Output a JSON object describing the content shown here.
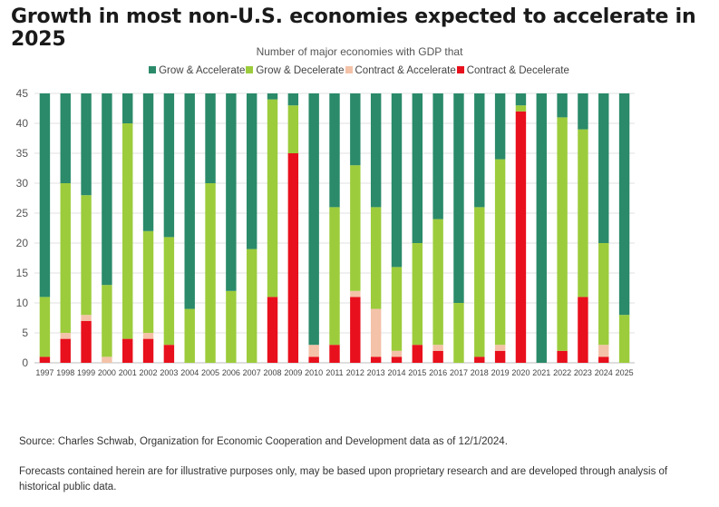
{
  "headline": "Growth in most non-U.S. economies expected to accelerate in 2025",
  "footer": {
    "source": "Source: Charles Schwab, Organization for Economic Cooperation and Development data as of 12/1/2024.",
    "disclaimer": "Forecasts contained herein are for illustrative purposes only, may be based upon proprietary research and are developed through analysis of historical public data."
  },
  "chart_data": {
    "type": "bar",
    "stacked": true,
    "title": "Number of major economies with GDP that",
    "categories": [
      "1997",
      "1998",
      "1999",
      "2000",
      "2001",
      "2002",
      "2003",
      "2004",
      "2005",
      "2006",
      "2007",
      "2008",
      "2009",
      "2010",
      "2011",
      "2012",
      "2013",
      "2014",
      "2015",
      "2016",
      "2017",
      "2018",
      "2019",
      "2020",
      "2021",
      "2022",
      "2023",
      "2024",
      "2025"
    ],
    "series": [
      {
        "name": "Contract & Decelerate",
        "color": "#e8101c",
        "values": [
          1,
          4,
          7,
          0,
          4,
          4,
          3,
          0,
          0,
          0,
          0,
          11,
          35,
          1,
          3,
          11,
          1,
          1,
          3,
          2,
          0,
          1,
          2,
          42,
          0,
          2,
          11,
          1,
          0
        ]
      },
      {
        "name": "Contract & Accelerate",
        "color": "#f4c2a8",
        "values": [
          0,
          1,
          1,
          1,
          0,
          1,
          0,
          0,
          0,
          0,
          0,
          0,
          0,
          2,
          0,
          1,
          8,
          1,
          0,
          1,
          0,
          0,
          1,
          0,
          0,
          0,
          0,
          2,
          0
        ]
      },
      {
        "name": "Grow & Decelerate",
        "color": "#9ccc3c",
        "values": [
          10,
          25,
          20,
          12,
          36,
          17,
          18,
          9,
          30,
          12,
          19,
          33,
          8,
          0,
          23,
          21,
          17,
          14,
          17,
          21,
          10,
          25,
          31,
          1,
          0,
          39,
          28,
          17,
          8
        ]
      },
      {
        "name": "Grow & Accelerate",
        "color": "#2a8a6a",
        "values": [
          34,
          15,
          17,
          32,
          5,
          23,
          24,
          36,
          15,
          33,
          26,
          1,
          2,
          42,
          19,
          12,
          19,
          29,
          25,
          21,
          35,
          19,
          11,
          2,
          45,
          4,
          6,
          25,
          37
        ]
      }
    ],
    "legend_order": [
      "Grow & Accelerate",
      "Grow & Decelerate",
      "Contract & Accelerate",
      "Contract & Decelerate"
    ],
    "legend_position": "top",
    "ylim": [
      0,
      45
    ],
    "yticks": [
      0,
      5,
      10,
      15,
      20,
      25,
      30,
      35,
      40,
      45
    ],
    "grid": true,
    "xlabel": "",
    "ylabel": ""
  }
}
